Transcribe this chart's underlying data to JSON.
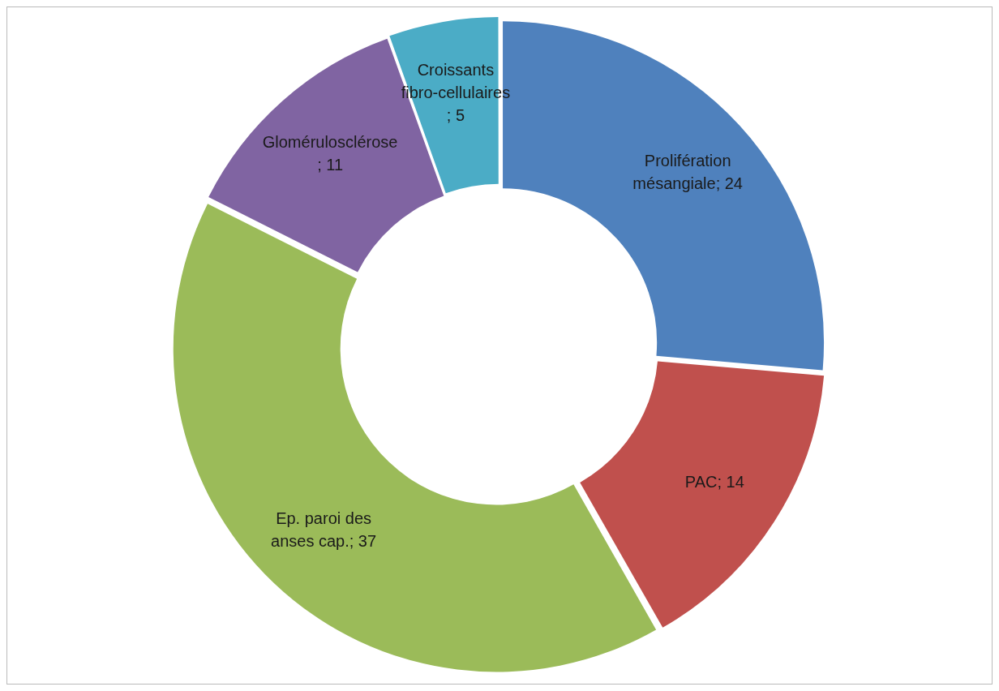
{
  "chart_data": {
    "type": "donut",
    "categories": [
      "Prolifération mésangiale",
      "PAC",
      "Ep. paroi des anses cap.",
      "Glomérulosclérose",
      "Croissants fibro-cellulaires"
    ],
    "values": [
      24,
      14,
      37,
      11,
      5
    ],
    "colors": [
      "#4f81bd",
      "#c0504d",
      "#9bbb59",
      "#8064a2",
      "#4bacc6"
    ],
    "value_labels": [
      "; 24",
      "; 14",
      "; 37",
      "; 11",
      "; 5"
    ],
    "legend": false
  }
}
